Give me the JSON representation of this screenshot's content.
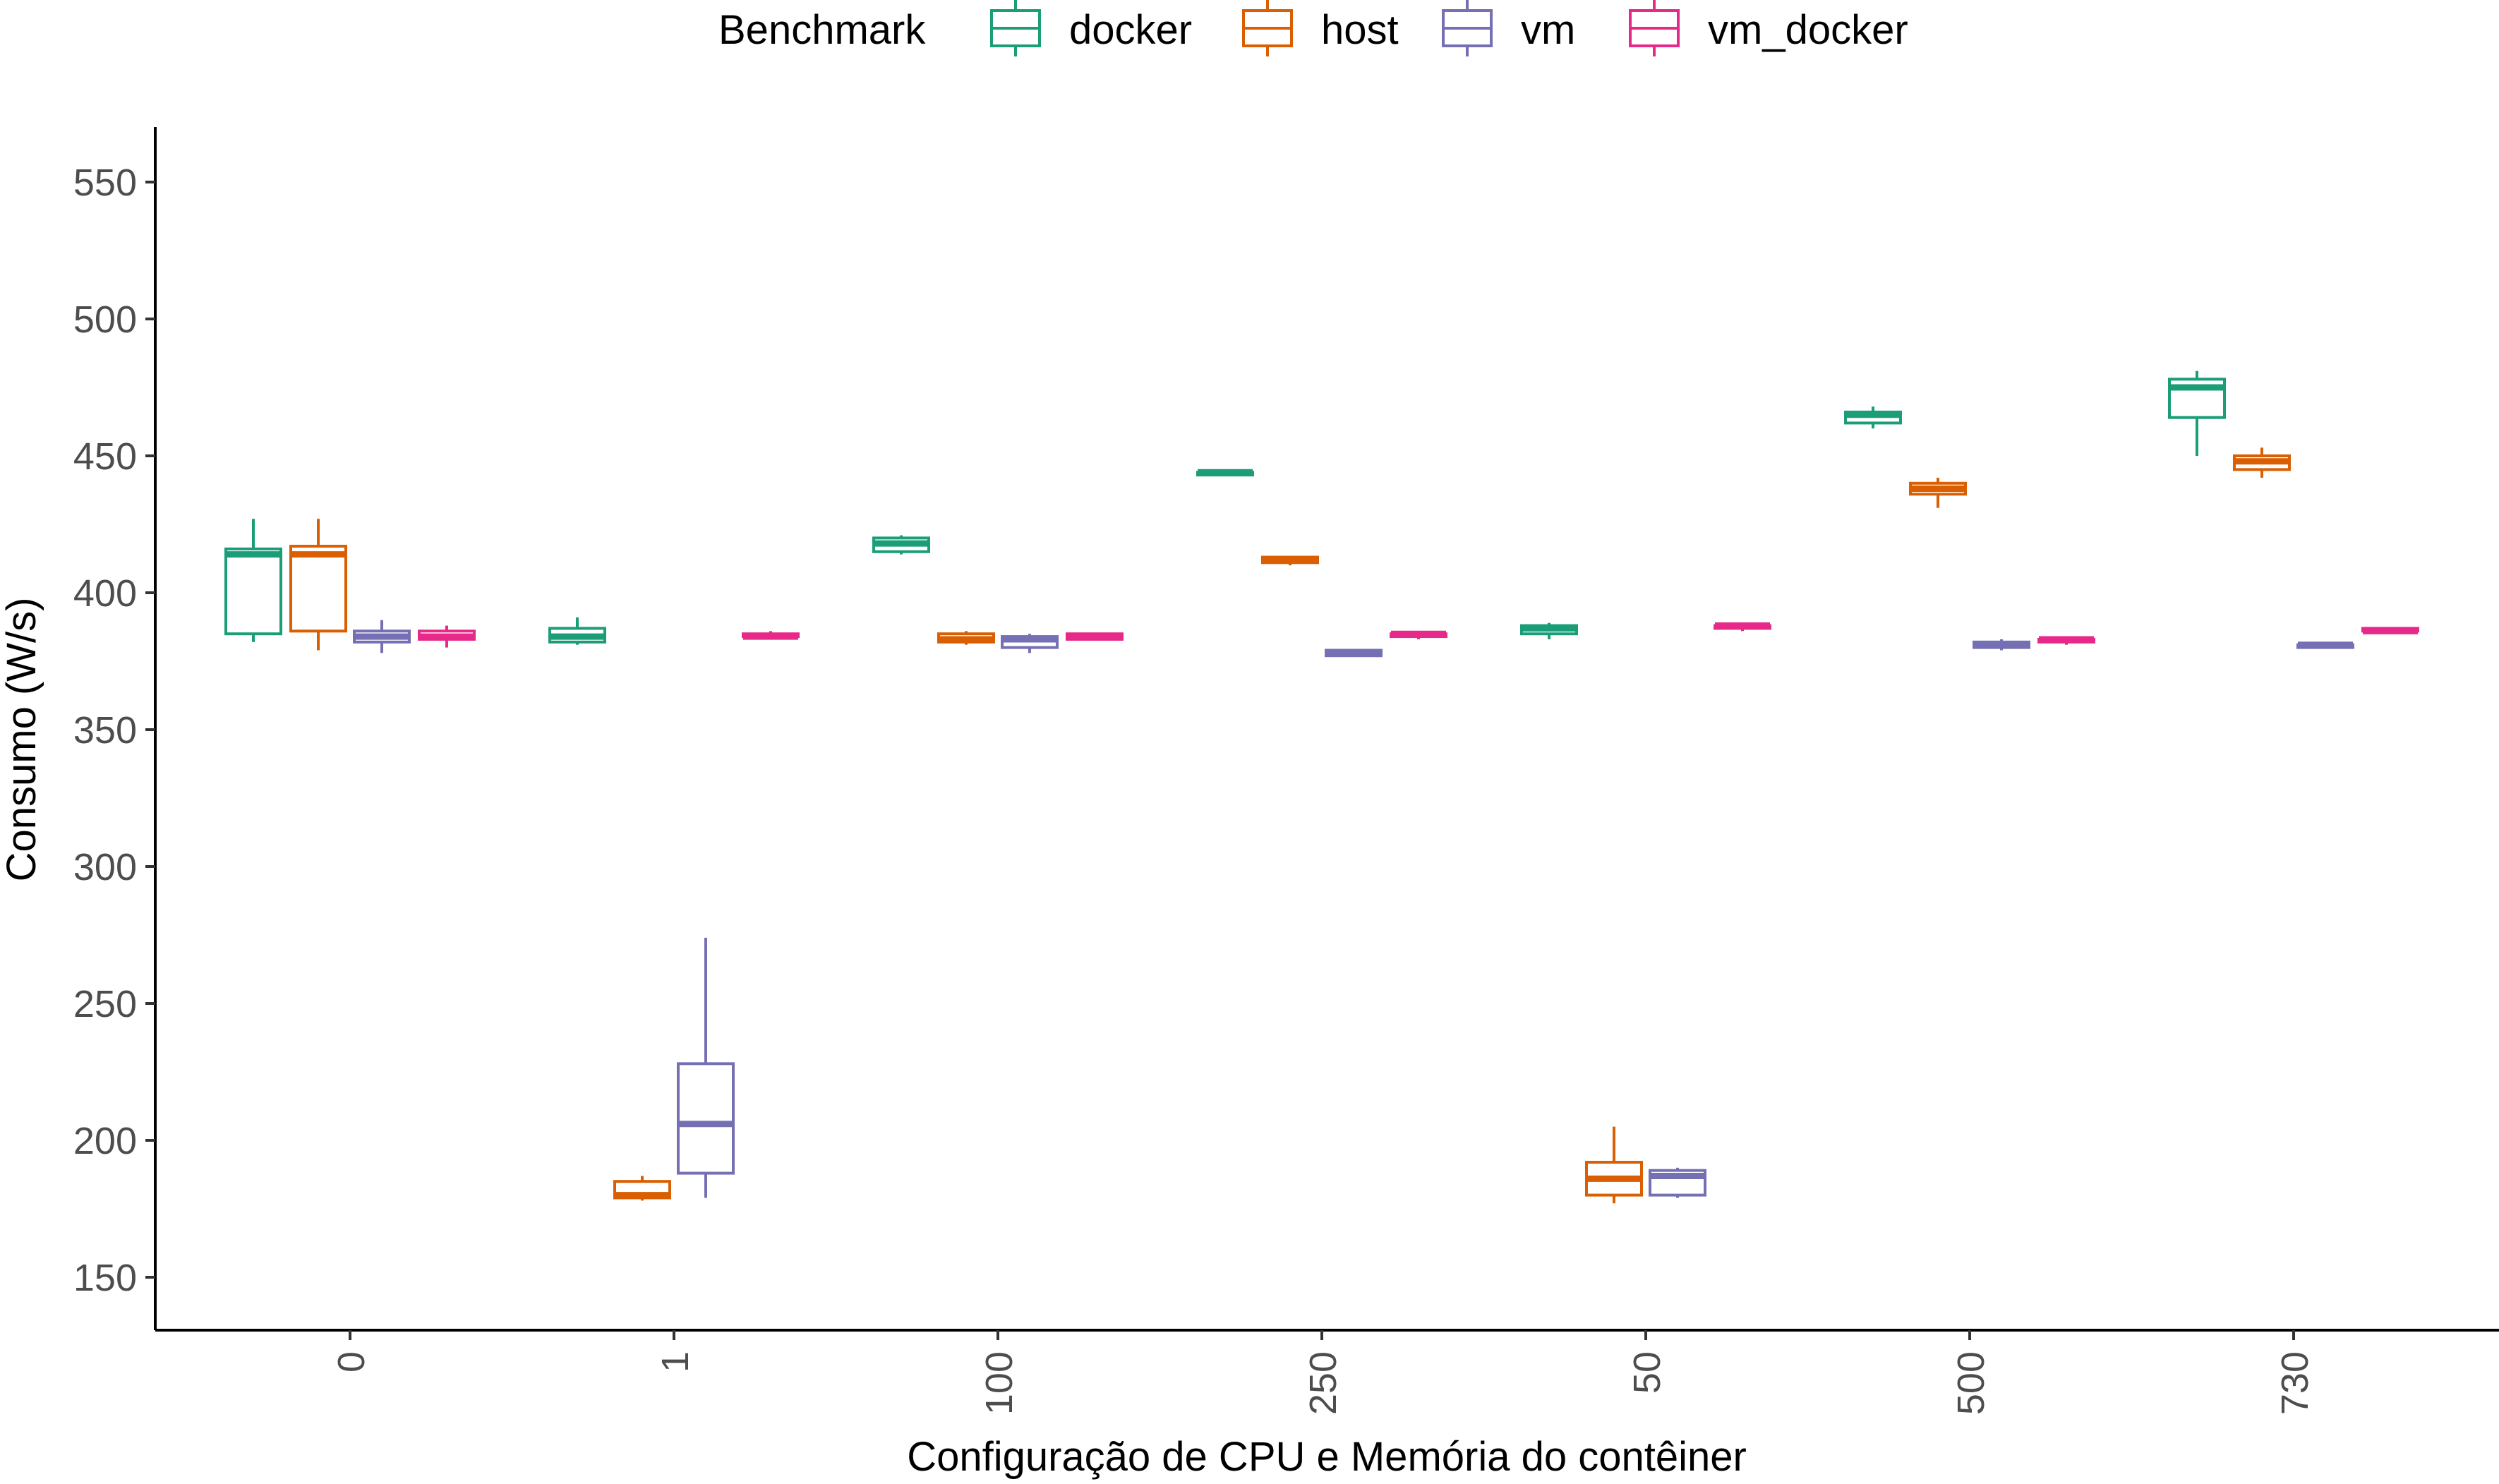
{
  "legend": {
    "title": "Benchmark",
    "entries": [
      {
        "name": "docker",
        "color": "#1b9e77"
      },
      {
        "name": "host",
        "color": "#d95f02"
      },
      {
        "name": "vm",
        "color": "#7570b3"
      },
      {
        "name": "vm_docker",
        "color": "#e7298a"
      }
    ],
    "placement": "top"
  },
  "chart_data": {
    "type": "boxplot",
    "xlabel": "Configuração de CPU e Memória do contêiner",
    "ylabel": "Consumo (W/s)",
    "ylim": [
      130,
      570
    ],
    "yticks": [
      150,
      200,
      250,
      300,
      350,
      400,
      450,
      500,
      550
    ],
    "categories": [
      "0",
      "1",
      "100",
      "250",
      "50",
      "500",
      "730"
    ],
    "grid": false,
    "series": [
      {
        "name": "docker",
        "color": "#1b9e77",
        "boxes": [
          {
            "category": "0",
            "min": 382,
            "q1": 385,
            "median": 414,
            "q3": 416,
            "max": 427
          },
          {
            "category": "1",
            "min": 381,
            "q1": 382,
            "median": 384,
            "q3": 387,
            "max": 391
          },
          {
            "category": "100",
            "min": 414,
            "q1": 415,
            "median": 418,
            "q3": 420,
            "max": 421
          },
          {
            "category": "250",
            "min": 443,
            "q1": 443,
            "median": 444,
            "q3": 444,
            "max": 445
          },
          {
            "category": "50",
            "min": 383,
            "q1": 385,
            "median": 387,
            "q3": 388,
            "max": 389
          },
          {
            "category": "500",
            "min": 460,
            "q1": 462,
            "median": 465,
            "q3": 466,
            "max": 468
          },
          {
            "category": "730",
            "min": 450,
            "q1": 464,
            "median": 475,
            "q3": 478,
            "max": 481
          }
        ]
      },
      {
        "name": "host",
        "color": "#d95f02",
        "boxes": [
          {
            "category": "0",
            "min": 379,
            "q1": 386,
            "median": 414,
            "q3": 417,
            "max": 427
          },
          {
            "category": "1",
            "min": 178,
            "q1": 179,
            "median": 180,
            "q3": 185,
            "max": 187
          },
          {
            "category": "100",
            "min": 381,
            "q1": 382,
            "median": 383,
            "q3": 385,
            "max": 386
          },
          {
            "category": "250",
            "min": 410,
            "q1": 411,
            "median": 412,
            "q3": 413,
            "max": 413
          },
          {
            "category": "50",
            "min": 177,
            "q1": 180,
            "median": 186,
            "q3": 192,
            "max": 205
          },
          {
            "category": "500",
            "min": 431,
            "q1": 436,
            "median": 438,
            "q3": 440,
            "max": 442
          },
          {
            "category": "730",
            "min": 442,
            "q1": 445,
            "median": 448,
            "q3": 450,
            "max": 453
          }
        ]
      },
      {
        "name": "vm",
        "color": "#7570b3",
        "boxes": [
          {
            "category": "0",
            "min": 378,
            "q1": 382,
            "median": 384,
            "q3": 386,
            "max": 390
          },
          {
            "category": "1",
            "min": 179,
            "q1": 188,
            "median": 206,
            "q3": 228,
            "max": 274
          },
          {
            "category": "100",
            "min": 378,
            "q1": 380,
            "median": 383,
            "q3": 384,
            "max": 385
          },
          {
            "category": "250",
            "min": 377,
            "q1": 377,
            "median": 378,
            "q3": 379,
            "max": 379
          },
          {
            "category": "50",
            "min": 179,
            "q1": 180,
            "median": 187,
            "q3": 189,
            "max": 190
          },
          {
            "category": "500",
            "min": 379,
            "q1": 380,
            "median": 381,
            "q3": 382,
            "max": 383
          },
          {
            "category": "730",
            "min": 380,
            "q1": 380,
            "median": 381,
            "q3": 381,
            "max": 382
          }
        ]
      },
      {
        "name": "vm_docker",
        "color": "#e7298a",
        "boxes": [
          {
            "category": "0",
            "min": 380,
            "q1": 383,
            "median": 384,
            "q3": 386,
            "max": 388
          },
          {
            "category": "1",
            "min": 383,
            "q1": 384,
            "median": 384,
            "q3": 385,
            "max": 386
          },
          {
            "category": "100",
            "min": 383,
            "q1": 383,
            "median": 384,
            "q3": 385,
            "max": 385
          },
          {
            "category": "250",
            "min": 383,
            "q1": 384,
            "median": 385,
            "q3": 385,
            "max": 386
          },
          {
            "category": "50",
            "min": 386,
            "q1": 387,
            "median": 388,
            "q3": 388,
            "max": 389
          },
          {
            "category": "500",
            "min": 381,
            "q1": 382,
            "median": 383,
            "q3": 383,
            "max": 384
          },
          {
            "category": "730",
            "min": 385,
            "q1": 386,
            "median": 386,
            "q3": 387,
            "max": 387
          }
        ]
      }
    ]
  }
}
